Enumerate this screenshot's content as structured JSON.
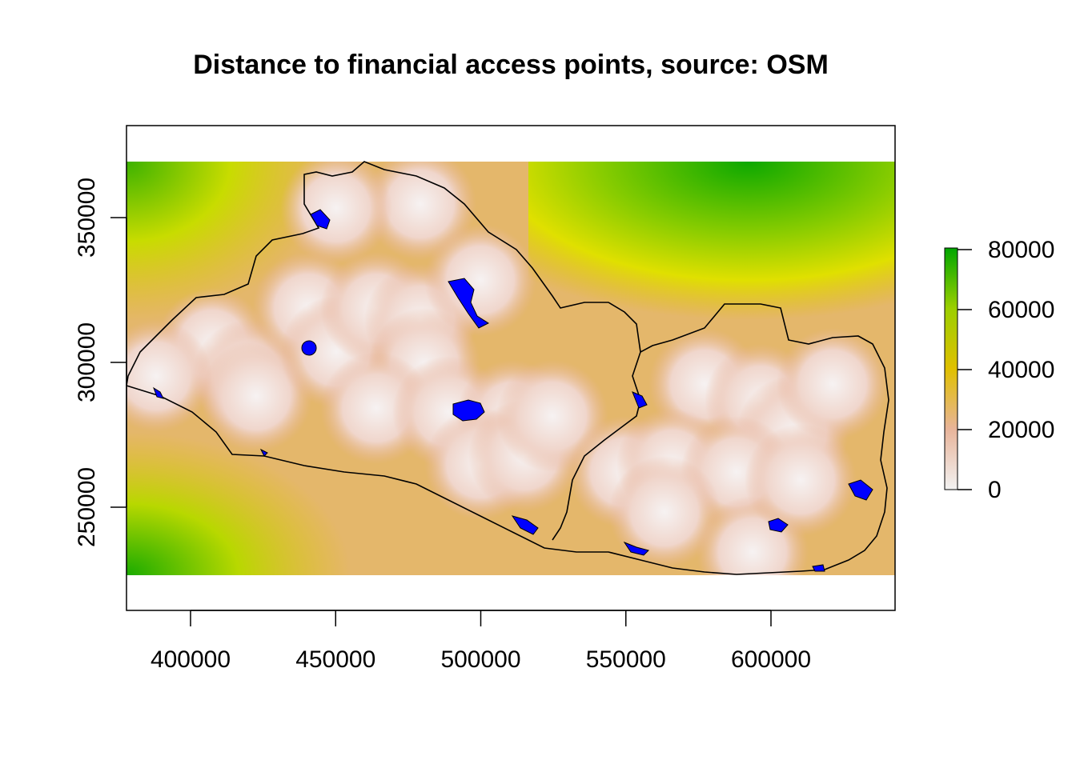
{
  "title": "Distance to financial access points, source: OSM",
  "colors": {
    "scale_low": "#f2f2f2",
    "scale_mid_low": "#e8b49a",
    "scale_mid": "#e0c000",
    "scale_high": "#00a600",
    "water_bodies": "#0000ff",
    "boundary": "#000000"
  },
  "axes": {
    "x_ticks": [
      "400000",
      "450000",
      "500000",
      "550000",
      "600000"
    ],
    "y_ticks": [
      "250000",
      "300000",
      "350000"
    ]
  },
  "legend": {
    "ticks": [
      "80000",
      "60000",
      "40000",
      "20000",
      "0"
    ]
  },
  "chart_data": {
    "type": "heatmap",
    "title": "Distance to financial access points, source: OSM",
    "x_ticks": [
      400000,
      450000,
      500000,
      550000,
      600000
    ],
    "y_ticks": [
      250000,
      300000,
      350000
    ],
    "legend_values": [
      0,
      20000,
      40000,
      60000,
      80000
    ],
    "legend_placement": "right"
  }
}
